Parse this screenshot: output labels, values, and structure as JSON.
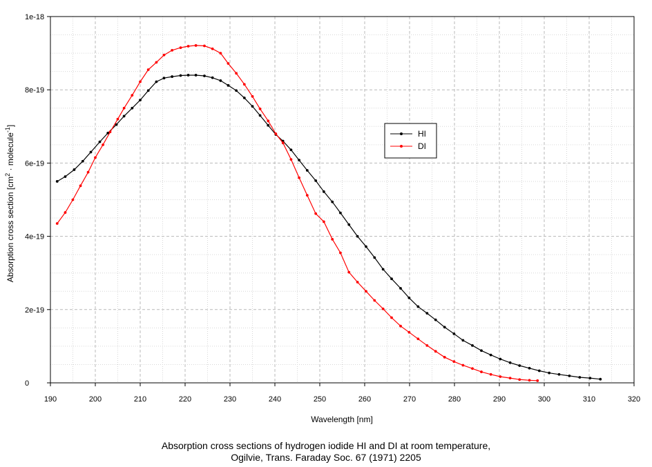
{
  "chart_data": {
    "type": "line",
    "title": "",
    "xlabel": "Wavelength [nm]",
    "ylabel_main": "Absorption cross section [cm",
    "ylabel_sup1": "2",
    "ylabel_mid": " · molecule",
    "ylabel_sup2": "-1",
    "ylabel_end": "]",
    "xlim": [
      190,
      320
    ],
    "ylim": [
      0,
      1e-18
    ],
    "x_ticks": [
      190,
      200,
      210,
      220,
      230,
      240,
      250,
      260,
      270,
      280,
      290,
      300,
      310,
      320
    ],
    "x_tick_labels": [
      "190",
      "200",
      "210",
      "220",
      "230",
      "240",
      "250",
      "260",
      "270",
      "280",
      "290",
      "300",
      "310",
      "320"
    ],
    "y_ticks": [
      0,
      2e-19,
      4e-19,
      6e-19,
      8e-19,
      1e-18
    ],
    "y_tick_labels": [
      "0",
      "2e-19",
      "4e-19",
      "6e-19",
      "8e-19",
      "1e-18"
    ],
    "grid": true,
    "legend_position": "right-center",
    "series": [
      {
        "name": "HI",
        "color": "#000000",
        "x": [
          191.5,
          193.3,
          195.3,
          197.2,
          199.0,
          201.0,
          202.8,
          204.7,
          206.4,
          208.2,
          210.0,
          211.8,
          213.6,
          215.3,
          217.1,
          219.0,
          220.7,
          222.4,
          224.3,
          226.1,
          227.9,
          229.6,
          231.4,
          233.2,
          235.0,
          236.7,
          238.5,
          240.2,
          241.8,
          243.6,
          245.4,
          247.2,
          249.1,
          250.9,
          252.8,
          254.6,
          256.5,
          258.4,
          260.3,
          262.2,
          264.1,
          266.0,
          268.0,
          269.9,
          271.9,
          273.9,
          275.8,
          277.8,
          279.9,
          281.9,
          284.0,
          286.0,
          288.1,
          290.2,
          292.4,
          294.5,
          296.7,
          298.9,
          301.1,
          303.3,
          305.6,
          307.9,
          310.2,
          312.5
        ],
        "y": [
          5.5e-19,
          5.63e-19,
          5.82e-19,
          6.05e-19,
          6.3e-19,
          6.58e-19,
          6.82e-19,
          7.05e-19,
          7.28e-19,
          7.5e-19,
          7.72e-19,
          7.98e-19,
          8.22e-19,
          8.32e-19,
          8.36e-19,
          8.39e-19,
          8.4e-19,
          8.4e-19,
          8.38e-19,
          8.33e-19,
          8.25e-19,
          8.12e-19,
          7.98e-19,
          7.78e-19,
          7.55e-19,
          7.3e-19,
          7.03e-19,
          6.78e-19,
          6.6e-19,
          6.36e-19,
          6.08e-19,
          5.8e-19,
          5.52e-19,
          5.22e-19,
          4.94e-19,
          4.64e-19,
          4.32e-19,
          4e-19,
          3.72e-19,
          3.42e-19,
          3.1e-19,
          2.84e-19,
          2.58e-19,
          2.32e-19,
          2.08e-19,
          1.9e-19,
          1.72e-19,
          1.52e-19,
          1.34e-19,
          1.16e-19,
          1.02e-19,
          8.8e-20,
          7.6e-20,
          6.5e-20,
          5.5e-20,
          4.7e-20,
          4e-20,
          3.3e-20,
          2.7e-20,
          2.3e-20,
          1.9e-20,
          1.5e-20,
          1.3e-20,
          1e-20
        ]
      },
      {
        "name": "DI",
        "color": "#ff0000",
        "x": [
          191.5,
          193.3,
          195.0,
          196.7,
          198.4,
          200.0,
          201.7,
          203.3,
          205.0,
          206.4,
          208.2,
          210.0,
          211.8,
          213.6,
          215.3,
          217.1,
          219.0,
          220.7,
          222.4,
          224.3,
          226.1,
          227.9,
          229.6,
          231.4,
          233.2,
          235.0,
          236.7,
          238.5,
          240.2,
          241.8,
          243.6,
          245.4,
          247.2,
          249.1,
          250.9,
          252.8,
          254.6,
          256.5,
          258.4,
          260.3,
          262.2,
          264.1,
          266.0,
          268.0,
          269.9,
          271.9,
          273.9,
          275.8,
          277.8,
          279.9,
          281.9,
          284.0,
          286.0,
          288.1,
          290.2,
          292.4,
          294.5,
          296.7,
          298.5
        ],
        "y": [
          4.35e-19,
          4.65e-19,
          5e-19,
          5.38e-19,
          5.75e-19,
          6.15e-19,
          6.5e-19,
          6.85e-19,
          7.2e-19,
          7.5e-19,
          7.85e-19,
          8.22e-19,
          8.55e-19,
          8.75e-19,
          8.95e-19,
          9.08e-19,
          9.15e-19,
          9.19e-19,
          9.21e-19,
          9.2e-19,
          9.12e-19,
          9e-19,
          8.72e-19,
          8.45e-19,
          8.15e-19,
          7.82e-19,
          7.48e-19,
          7.15e-19,
          6.8e-19,
          6.55e-19,
          6.1e-19,
          5.6e-19,
          5.12e-19,
          4.62e-19,
          4.4e-19,
          3.92e-19,
          3.55e-19,
          3.02e-19,
          2.75e-19,
          2.5e-19,
          2.25e-19,
          2.02e-19,
          1.78e-19,
          1.55e-19,
          1.38e-19,
          1.2e-19,
          1.02e-19,
          8.6e-20,
          7e-20,
          5.8e-20,
          4.8e-20,
          3.9e-20,
          3e-20,
          2.3e-20,
          1.7e-20,
          1.3e-20,
          9e-21,
          7e-21,
          6e-21
        ]
      }
    ]
  },
  "caption": {
    "line1": "Absorption cross sections of hydrogen iodide HI and DI at room temperature,",
    "line2": "Ogilvie, Trans. Faraday Soc. 67 (1971) 2205"
  }
}
